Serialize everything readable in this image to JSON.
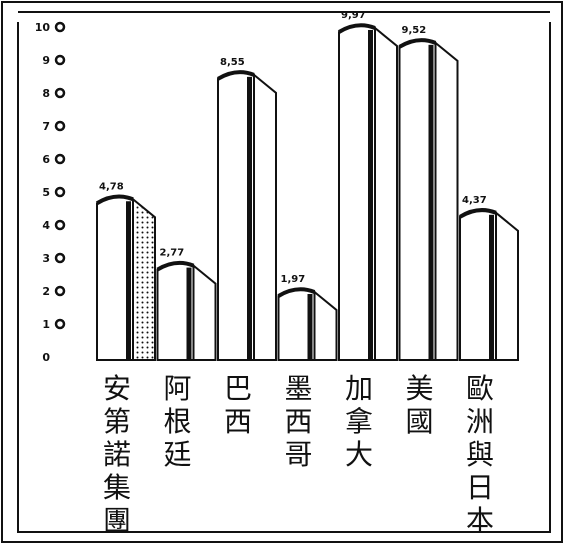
{
  "chart_data": {
    "type": "bar",
    "categories": [
      "安第諾集團",
      "阿根廷",
      "巴西",
      "墨西哥",
      "加拿大",
      "美國",
      "歐洲與日本"
    ],
    "value_labels": [
      "4,78",
      "2,77",
      "8,55",
      "1,97",
      "9,97",
      "9,52",
      "4,37"
    ],
    "values": [
      4.78,
      2.77,
      8.55,
      1.97,
      9.97,
      9.52,
      4.37
    ],
    "y_ticks": [
      "0",
      "1",
      "2",
      "3",
      "4",
      "5",
      "6",
      "7",
      "8",
      "9",
      "10"
    ],
    "ylim": [
      0,
      10
    ],
    "title": "",
    "xlabel": "",
    "ylabel": "",
    "grid": false,
    "legend": "none",
    "colors": {
      "ink": "#111111",
      "bar_face": "#ffffff",
      "background": "#ffffff"
    }
  }
}
